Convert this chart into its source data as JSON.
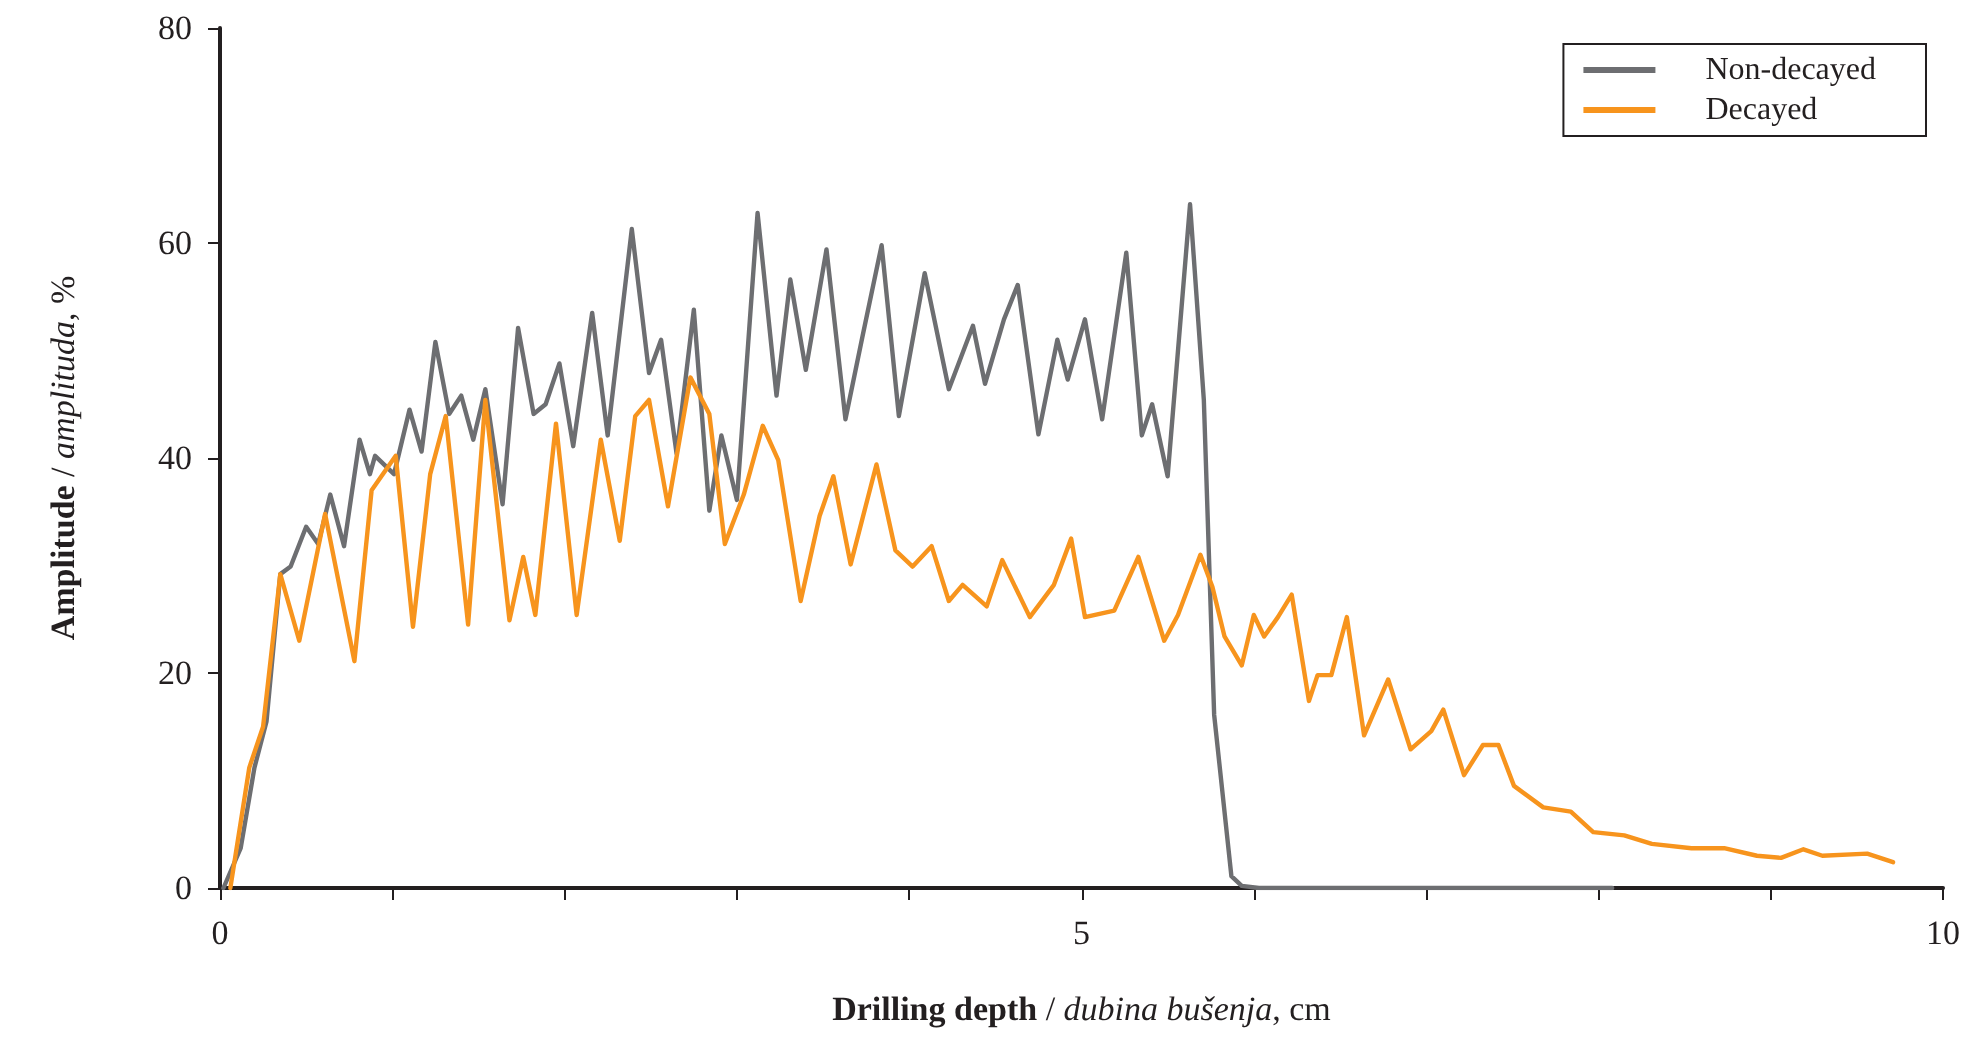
{
  "chart_data": {
    "type": "line",
    "xlabel": "Drilling depth / dubina bušenja, cm",
    "ylabel": "Amplitude / amplituda, %",
    "xlim": [
      0,
      10
    ],
    "xticks": [
      0,
      {
        "value": 1,
        "label": null
      },
      {
        "value": 2,
        "label": null
      },
      {
        "value": 3,
        "label": null
      },
      {
        "value": 4,
        "label": null
      },
      5,
      {
        "value": 6,
        "label": null
      },
      {
        "value": 7,
        "label": null
      },
      {
        "value": 8,
        "label": null
      },
      {
        "value": 9,
        "label": null
      },
      10
    ],
    "ylim": [
      0,
      80
    ],
    "yticks": [
      0,
      20,
      40,
      60,
      80
    ],
    "grid": false,
    "legend": "top right",
    "marker": "none",
    "line_style": "solid",
    "series": [
      {
        "name": "Non-decayed",
        "color": "#6d6e71",
        "x": [
          0.02,
          0.12,
          0.2,
          0.27,
          0.35,
          0.41,
          0.5,
          0.57,
          0.64,
          0.72,
          0.81,
          0.87,
          0.9,
          1.01,
          1.1,
          1.17,
          1.25,
          1.33,
          1.4,
          1.47,
          1.54,
          1.64,
          1.73,
          1.82,
          1.89,
          1.97,
          2.05,
          2.16,
          2.25,
          2.39,
          2.49,
          2.56,
          2.65,
          2.75,
          2.84,
          2.91,
          3.0,
          3.12,
          3.23,
          3.31,
          3.4,
          3.52,
          3.63,
          3.73,
          3.84,
          3.94,
          4.09,
          4.23,
          4.37,
          4.44,
          4.55,
          4.63,
          4.75,
          4.86,
          4.92,
          5.02,
          5.12,
          5.26,
          5.35,
          5.41,
          5.5,
          5.63,
          5.71,
          5.77,
          5.87,
          5.93,
          6.03,
          8.08
        ],
        "values": [
          0,
          3.7,
          11.2,
          15.5,
          29.2,
          29.9,
          33.6,
          32.0,
          36.6,
          31.8,
          41.7,
          38.5,
          40.2,
          38.5,
          44.5,
          40.6,
          50.8,
          44.1,
          45.8,
          41.7,
          46.4,
          35.7,
          52.1,
          44.1,
          45.0,
          48.8,
          41.1,
          53.5,
          42.1,
          61.3,
          47.9,
          51.0,
          40.4,
          53.8,
          35.1,
          42.1,
          36.1,
          62.8,
          45.8,
          56.6,
          48.2,
          59.4,
          43.6,
          51.4,
          59.8,
          43.9,
          57.2,
          46.4,
          52.3,
          46.9,
          52.9,
          56.1,
          42.2,
          51.0,
          47.3,
          52.9,
          43.6,
          59.1,
          42.1,
          45.0,
          38.3,
          63.6,
          45.4,
          16.1,
          1.1,
          0.2,
          0,
          0
        ]
      },
      {
        "name": "Decayed",
        "color": "#f7941d",
        "x": [
          0.06,
          0.17,
          0.25,
          0.35,
          0.46,
          0.61,
          0.78,
          0.88,
          1.02,
          1.12,
          1.22,
          1.31,
          1.44,
          1.54,
          1.68,
          1.76,
          1.83,
          1.95,
          2.07,
          2.21,
          2.32,
          2.41,
          2.49,
          2.6,
          2.73,
          2.84,
          2.93,
          3.04,
          3.15,
          3.24,
          3.37,
          3.48,
          3.56,
          3.66,
          3.81,
          3.92,
          4.02,
          4.13,
          4.23,
          4.31,
          4.45,
          4.54,
          4.7,
          4.84,
          4.94,
          5.02,
          5.19,
          5.33,
          5.48,
          5.56,
          5.69,
          5.76,
          5.83,
          5.93,
          6.0,
          6.06,
          6.14,
          6.22,
          6.32,
          6.37,
          6.45,
          6.54,
          6.64,
          6.78,
          6.91,
          7.03,
          7.1,
          7.22,
          7.33,
          7.42,
          7.51,
          7.68,
          7.84,
          7.97,
          8.15,
          8.31,
          8.54,
          8.73,
          8.92,
          9.06,
          9.19,
          9.3,
          9.56,
          9.71
        ],
        "values": [
          0,
          11.2,
          15.0,
          29.2,
          23.0,
          34.8,
          21.1,
          37.0,
          40.2,
          24.3,
          38.5,
          43.9,
          24.5,
          45.4,
          24.9,
          30.8,
          25.4,
          43.2,
          25.4,
          41.7,
          32.3,
          43.9,
          45.4,
          35.5,
          47.5,
          44.1,
          32.0,
          36.6,
          43.0,
          39.8,
          26.7,
          34.6,
          38.3,
          30.1,
          39.4,
          31.4,
          29.9,
          31.8,
          26.7,
          28.2,
          26.2,
          30.5,
          25.2,
          28.2,
          32.5,
          25.2,
          25.8,
          30.8,
          23.0,
          25.4,
          31.0,
          28.0,
          23.4,
          20.7,
          25.4,
          23.4,
          25.2,
          27.3,
          17.4,
          19.8,
          19.8,
          25.2,
          14.2,
          19.4,
          12.9,
          14.6,
          16.6,
          10.5,
          13.3,
          13.3,
          9.5,
          7.5,
          7.1,
          5.2,
          4.9,
          4.1,
          3.7,
          3.7,
          3.0,
          2.8,
          3.6,
          3.0,
          3.2,
          2.4
        ]
      }
    ]
  }
}
